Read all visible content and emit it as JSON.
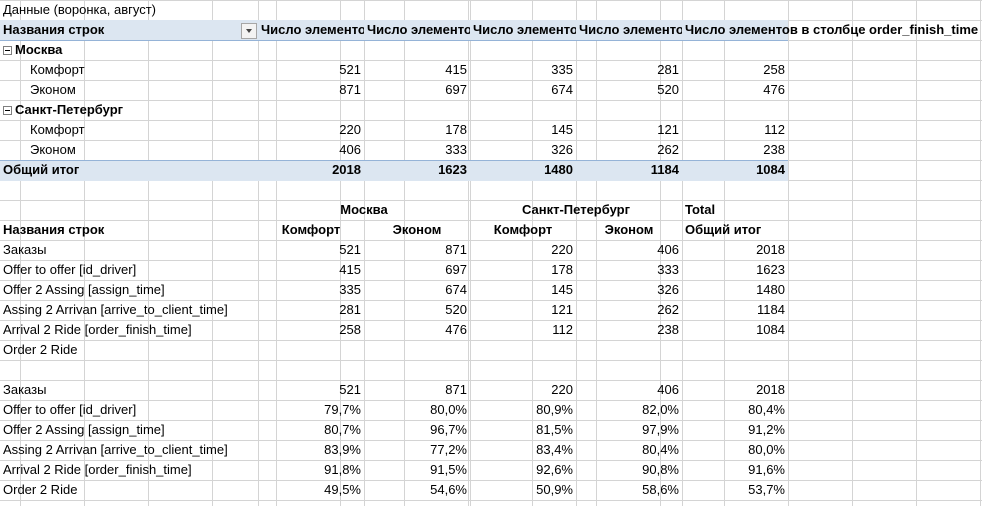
{
  "pivot": {
    "title": "Данные (воронка, август)",
    "row_header": "Названия строк",
    "columns": [
      "Число элементов в столбце id_order",
      "Число элементов в столбце id_driver",
      "Число элементов в столбце assign_time",
      "Число элементов в столбце arrive_to_client_time",
      "Число элементов в столбце order_finish_time"
    ],
    "groups": [
      {
        "name": "Москва",
        "rows": [
          {
            "label": "Комфорт",
            "values": [
              "521",
              "415",
              "335",
              "281",
              "258"
            ]
          },
          {
            "label": "Эконом",
            "values": [
              "871",
              "697",
              "674",
              "520",
              "476"
            ]
          }
        ]
      },
      {
        "name": "Санкт-Петербург",
        "rows": [
          {
            "label": "Комфорт",
            "values": [
              "220",
              "178",
              "145",
              "121",
              "112"
            ]
          },
          {
            "label": "Эконом",
            "values": [
              "406",
              "333",
              "326",
              "262",
              "238"
            ]
          }
        ]
      }
    ],
    "total": {
      "label": "Общий итог",
      "values": [
        "2018",
        "1623",
        "1480",
        "1184",
        "1084"
      ]
    }
  },
  "funnel": {
    "row_header": "Названия строк",
    "city1": "Москва",
    "city2": "Санкт-Петербург",
    "total_header": "Total",
    "sub_headers": [
      "Комфорт",
      "Эконом",
      "Комфорт",
      "Эконом",
      "Общий итог"
    ],
    "rows": [
      {
        "label": "Заказы",
        "values": [
          "521",
          "871",
          "220",
          "406",
          "2018"
        ]
      },
      {
        "label": "Offer to offer [id_driver]",
        "values": [
          "415",
          "697",
          "178",
          "333",
          "1623"
        ]
      },
      {
        "label": "Offer 2 Assing [assign_time]",
        "values": [
          "335",
          "674",
          "145",
          "326",
          "1480"
        ]
      },
      {
        "label": "Assing 2 Arrivan [arrive_to_client_time]",
        "values": [
          "281",
          "520",
          "121",
          "262",
          "1184"
        ]
      },
      {
        "label": "Arrival 2 Ride  [order_finish_time]",
        "values": [
          "258",
          "476",
          "112",
          "238",
          "1084"
        ]
      },
      {
        "label": "Order 2 Ride",
        "values": [
          "",
          "",
          "",
          "",
          ""
        ]
      }
    ],
    "pct_rows": [
      {
        "label": "Заказы",
        "values": [
          "521",
          "871",
          "220",
          "406",
          "2018"
        ]
      },
      {
        "label": "Offer to offer [id_driver]",
        "values": [
          "79,7%",
          "80,0%",
          "80,9%",
          "82,0%",
          "80,4%"
        ]
      },
      {
        "label": "Offer 2 Assing [assign_time]",
        "values": [
          "80,7%",
          "96,7%",
          "81,5%",
          "97,9%",
          "91,2%"
        ]
      },
      {
        "label": "Assing 2 Arrivan [arrive_to_client_time]",
        "values": [
          "83,9%",
          "77,2%",
          "83,4%",
          "80,4%",
          "80,0%"
        ]
      },
      {
        "label": "Arrival 2 Ride  [order_finish_time]",
        "values": [
          "91,8%",
          "91,5%",
          "92,6%",
          "90,8%",
          "91,6%"
        ]
      },
      {
        "label": "Order 2 Ride",
        "values": [
          "49,5%",
          "54,6%",
          "50,9%",
          "58,6%",
          "53,7%"
        ]
      }
    ]
  }
}
